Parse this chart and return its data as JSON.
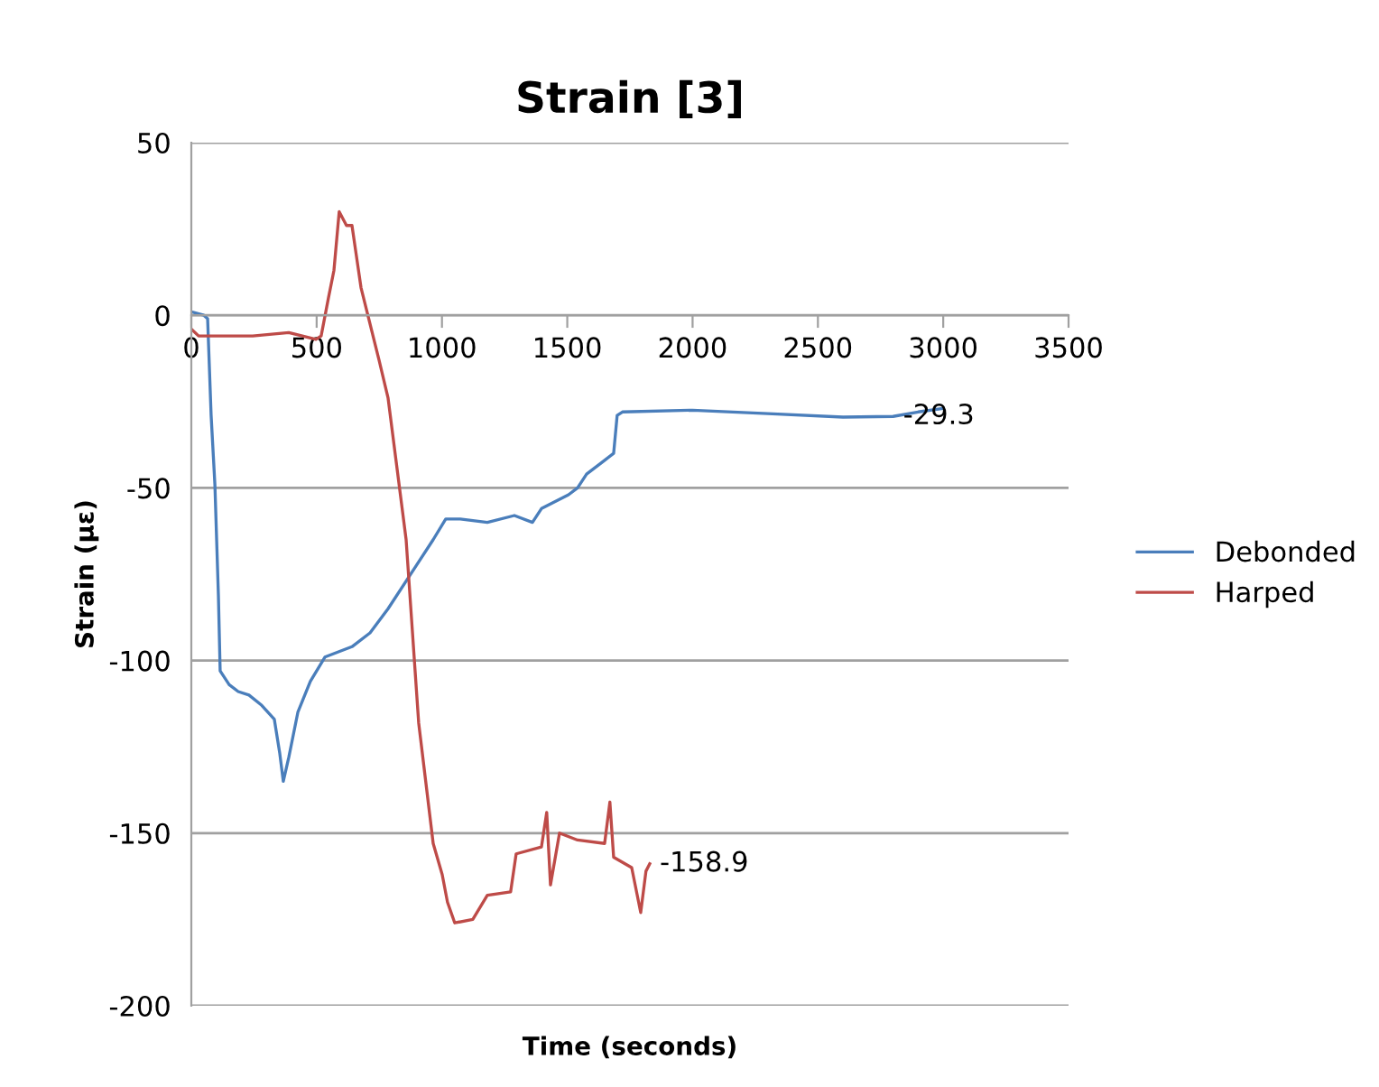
{
  "chart_data": {
    "type": "line",
    "title": "Strain [3]",
    "xlabel": "Time (seconds)",
    "ylabel": "Strain (με)",
    "xlim": [
      0,
      3500
    ],
    "xticks": [
      0,
      500,
      1000,
      1500,
      2000,
      2500,
      3000,
      3500
    ],
    "ylim": [
      -200,
      50
    ],
    "yticks": [
      -200,
      -150,
      -100,
      -50,
      0,
      50
    ],
    "grid": "y",
    "legend": "right",
    "marker": "none",
    "line_style": "solid",
    "annotations": [
      {
        "text": "-29.3",
        "x": 2800,
        "y": -29.3
      },
      {
        "text": "-158.9",
        "x": 1829,
        "y": -158.9
      }
    ],
    "series": [
      {
        "name": "Debonded",
        "color": "#4a7ebb",
        "x": [
          0,
          50,
          65,
          79,
          94,
          108,
          115,
          151,
          187,
          230,
          281,
          331,
          353,
          367,
          389,
          425,
          475,
          533,
          641,
          713,
          785,
          893,
          965,
          1015,
          1073,
          1181,
          1289,
          1361,
          1397,
          1505,
          1541,
          1577,
          1649,
          1685,
          1699,
          1720,
          2000,
          2300,
          2600,
          2800,
          2900,
          3000
        ],
        "values": [
          1,
          0,
          -1,
          -29,
          -49,
          -81,
          -103,
          -107,
          -109,
          -110,
          -113,
          -117,
          -127,
          -135,
          -128,
          -115,
          -106,
          -99,
          -96,
          -92,
          -85,
          -73,
          -65,
          -59,
          -59,
          -60,
          -58,
          -60,
          -56,
          -52,
          -50,
          -46,
          -42,
          -40,
          -29,
          -28,
          -27.5,
          -28.5,
          -29.5,
          -29.3,
          -28,
          -27
        ]
      },
      {
        "name": "Harped",
        "color": "#be4b48",
        "x": [
          0,
          29,
          101,
          245,
          389,
          497,
          518,
          547,
          569,
          590,
          619,
          641,
          677,
          749,
          785,
          857,
          907,
          965,
          1001,
          1022,
          1051,
          1123,
          1181,
          1274,
          1296,
          1397,
          1418,
          1433,
          1469,
          1541,
          1649,
          1670,
          1685,
          1757,
          1793,
          1814,
          1829
        ],
        "values": [
          -4,
          -6,
          -6,
          -6,
          -5,
          -7,
          -6,
          5,
          13,
          30,
          26,
          26,
          8,
          -13,
          -24,
          -65,
          -118,
          -153,
          -162,
          -170,
          -176,
          -175,
          -168,
          -167,
          -156,
          -154,
          -144,
          -165,
          -150,
          -152,
          -153,
          -141,
          -157,
          -160,
          -173,
          -161,
          -158.9
        ]
      }
    ]
  }
}
